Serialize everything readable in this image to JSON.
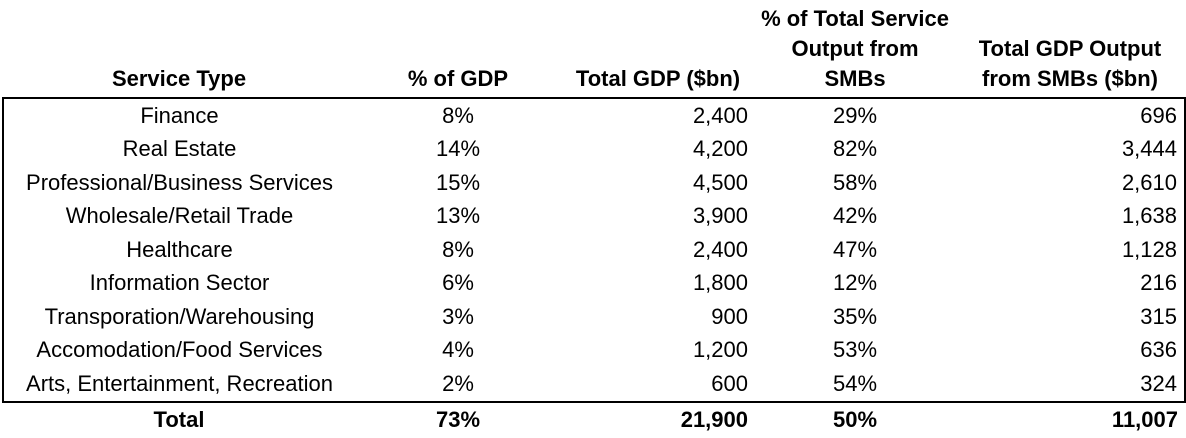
{
  "chart_data": {
    "type": "table",
    "columns": [
      "Service Type",
      "% of GDP",
      "Total GDP ($bn)",
      "% of Total Service Output from SMBs",
      "Total GDP Output from SMBs ($bn)"
    ],
    "rows": [
      [
        "Finance",
        "8%",
        "2,400",
        "29%",
        "696"
      ],
      [
        "Real Estate",
        "14%",
        "4,200",
        "82%",
        "3,444"
      ],
      [
        "Professional/Business Services",
        "15%",
        "4,500",
        "58%",
        "2,610"
      ],
      [
        "Wholesale/Retail Trade",
        "13%",
        "3,900",
        "42%",
        "1,638"
      ],
      [
        "Healthcare",
        "8%",
        "2,400",
        "47%",
        "1,128"
      ],
      [
        "Information Sector",
        "6%",
        "1,800",
        "12%",
        "216"
      ],
      [
        "Transporation/Warehousing",
        "3%",
        "900",
        "35%",
        "315"
      ],
      [
        "Accomodation/Food Services",
        "4%",
        "1,200",
        "53%",
        "636"
      ],
      [
        "Arts, Entertainment, Recreation",
        "2%",
        "600",
        "54%",
        "324"
      ]
    ],
    "total_row": [
      "Total",
      "73%",
      "21,900",
      "50%",
      "11,007"
    ]
  },
  "display": {
    "column_labels": [
      "Service Type",
      "% of GDP",
      "Total GDP ($bn)",
      "% of Total Service\nOutput from SMBs",
      "Total GDP Output\nfrom SMBs ($bn)"
    ]
  },
  "colors": {
    "text": "#000000",
    "border": "#000000",
    "background": "#ffffff"
  }
}
